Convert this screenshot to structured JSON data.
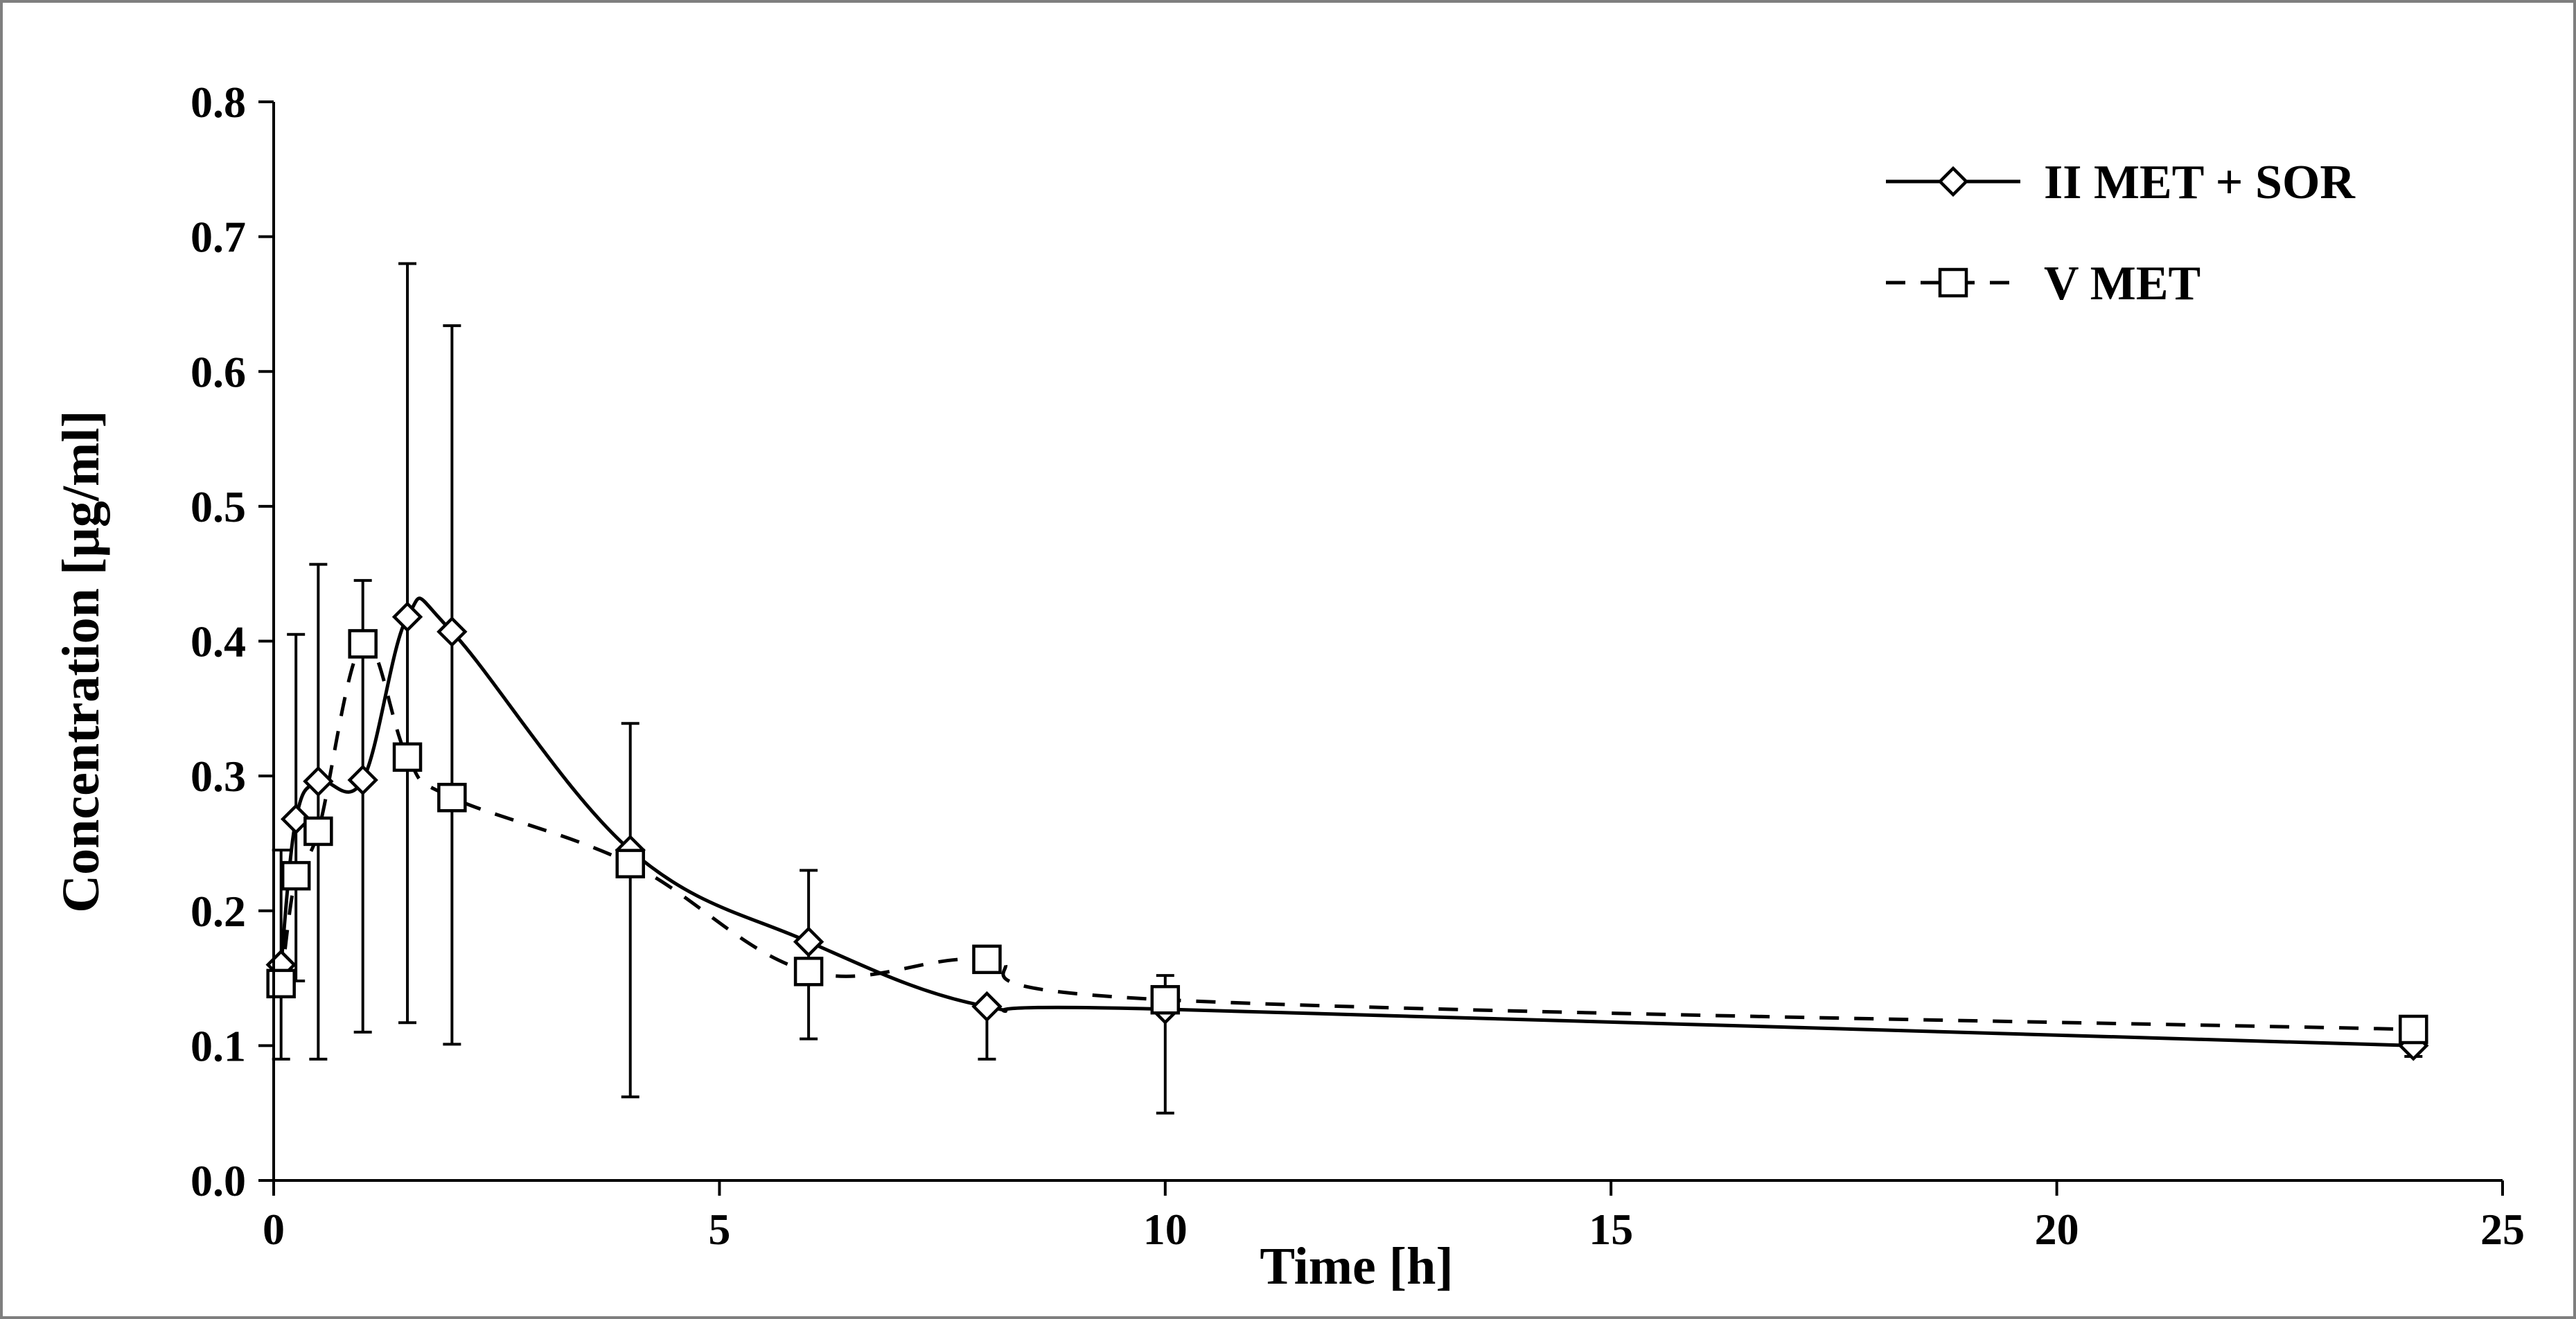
{
  "chart_data": {
    "type": "line",
    "title": "",
    "xlabel": "Time [h]",
    "ylabel": "Concentration [µg/ml]",
    "xlim": [
      0,
      25
    ],
    "ylim": [
      0.0,
      0.8
    ],
    "x_ticks": [
      0,
      5,
      10,
      15,
      20,
      25
    ],
    "y_ticks": [
      0.0,
      0.1,
      0.2,
      0.3,
      0.4,
      0.5,
      0.6,
      0.7,
      0.8
    ],
    "x_tick_labels": [
      "0",
      "5",
      "10",
      "15",
      "20",
      "25"
    ],
    "y_tick_labels": [
      "0.0",
      "0.1",
      "0.2",
      "0.3",
      "0.4",
      "0.5",
      "0.6",
      "0.7",
      "0.8"
    ],
    "grid": false,
    "legend_position": "top-right",
    "series": [
      {
        "name": "II MET + SOR",
        "marker": "diamond",
        "line_style": "solid",
        "x": [
          0.083,
          0.25,
          0.5,
          1,
          1.5,
          2,
          4,
          6,
          8,
          10,
          24
        ],
        "y": [
          0.16,
          0.268,
          0.296,
          0.297,
          0.418,
          0.407,
          0.245,
          0.177,
          0.129,
          0.127,
          0.1
        ],
        "error_upper": [
          0.245,
          0.405,
          0.457,
          0.445,
          0.68,
          0.634,
          0.339,
          0.23,
          0.13,
          0.152,
          0.108
        ],
        "error_lower": [
          0.09,
          0.148,
          0.09,
          0.11,
          0.117,
          0.101,
          0.062,
          0.105,
          0.09,
          0.05,
          0.092
        ]
      },
      {
        "name": "V MET",
        "marker": "square",
        "line_style": "dashed",
        "x": [
          0.083,
          0.25,
          0.5,
          1,
          1.5,
          2,
          4,
          6,
          8,
          10,
          24
        ],
        "y": [
          0.146,
          0.226,
          0.259,
          0.398,
          0.314,
          0.284,
          0.235,
          0.155,
          0.164,
          0.134,
          0.112
        ],
        "error_upper": [
          null,
          null,
          null,
          null,
          null,
          null,
          null,
          null,
          null,
          null,
          null
        ],
        "error_lower": [
          null,
          null,
          null,
          null,
          null,
          null,
          null,
          null,
          null,
          null,
          null
        ]
      }
    ]
  }
}
